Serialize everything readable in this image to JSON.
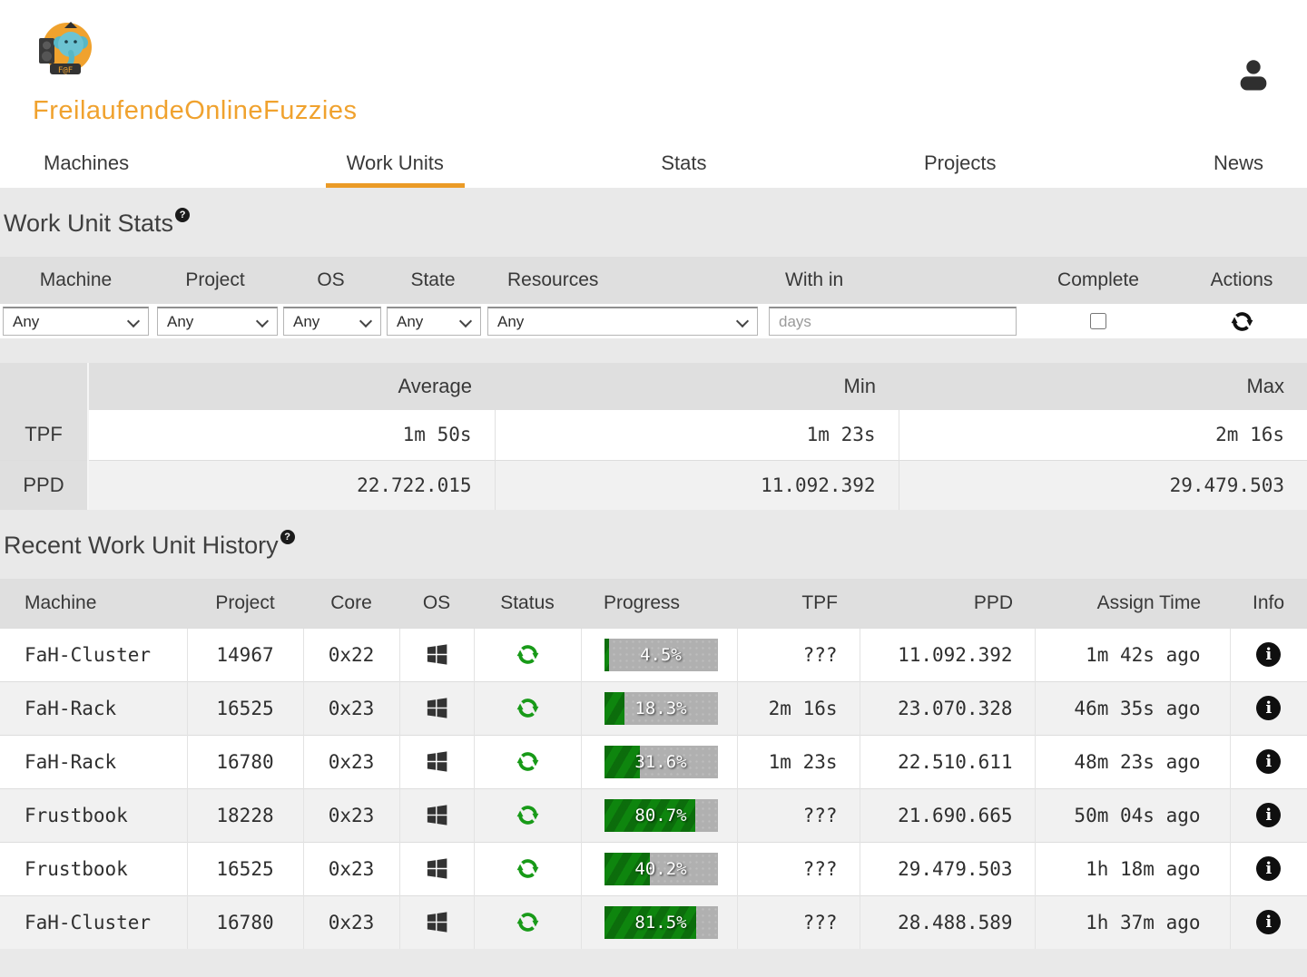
{
  "brand": {
    "title": "FreilaufendeOnlineFuzzies",
    "accent_color": "#f0a22e",
    "logo_icon": "elephant-fof-logo",
    "logo_text": "F@F"
  },
  "nav": {
    "tabs": [
      {
        "label": "Machines",
        "active": false
      },
      {
        "label": "Work Units",
        "active": true
      },
      {
        "label": "Stats",
        "active": false
      },
      {
        "label": "Projects",
        "active": false
      },
      {
        "label": "News",
        "active": false
      }
    ]
  },
  "glyphs": {
    "help": "?",
    "info": "i"
  },
  "colors": {
    "accent": "#f0a22e",
    "tab_underline": "#eb9b27",
    "status_green": "#189a18",
    "progress_green": "#0e850e",
    "progress_track": "#b0b0b0",
    "header_gray": "#dfdfdf",
    "row_alt": "#f1f1f1"
  },
  "wu_stats": {
    "heading": "Work Unit Stats",
    "filters": {
      "headers": {
        "machine": "Machine",
        "project": "Project",
        "os": "OS",
        "state": "State",
        "resources": "Resources",
        "within": "With in",
        "complete": "Complete",
        "actions": "Actions"
      },
      "machine": {
        "value": "Any"
      },
      "project": {
        "value": "Any"
      },
      "os": {
        "value": "Any"
      },
      "state": {
        "value": "Any"
      },
      "resources": {
        "value": "Any"
      },
      "within": {
        "value": "",
        "placeholder": "days"
      },
      "complete": {
        "checked": false
      },
      "actions_icon": "refresh-icon"
    },
    "summary": {
      "headers": {
        "average": "Average",
        "min": "Min",
        "max": "Max"
      },
      "tpf": {
        "label": "TPF",
        "average": "1m 50s",
        "min": "1m 23s",
        "max": "2m 16s"
      },
      "ppd": {
        "label": "PPD",
        "average": "22.722.015",
        "min": "11.092.392",
        "max": "29.479.503"
      }
    }
  },
  "history": {
    "heading": "Recent Work Unit History",
    "headers": {
      "machine": "Machine",
      "project": "Project",
      "core": "Core",
      "os": "OS",
      "status": "Status",
      "progress": "Progress",
      "tpf": "TPF",
      "ppd": "PPD",
      "assign": "Assign Time",
      "info": "Info"
    },
    "rows": [
      {
        "machine": "FaH-Cluster",
        "project": "14967",
        "core": "0x22",
        "os": "windows",
        "status": "running",
        "progress_pct": 4.5,
        "progress_label": "4.5%",
        "tpf": "???",
        "ppd": "11.092.392",
        "assign": "1m 42s ago"
      },
      {
        "machine": "FaH-Rack",
        "project": "16525",
        "core": "0x23",
        "os": "windows",
        "status": "running",
        "progress_pct": 18.3,
        "progress_label": "18.3%",
        "tpf": "2m 16s",
        "ppd": "23.070.328",
        "assign": "46m 35s ago"
      },
      {
        "machine": "FaH-Rack",
        "project": "16780",
        "core": "0x23",
        "os": "windows",
        "status": "running",
        "progress_pct": 31.6,
        "progress_label": "31.6%",
        "tpf": "1m 23s",
        "ppd": "22.510.611",
        "assign": "48m 23s ago"
      },
      {
        "machine": "Frustbook",
        "project": "18228",
        "core": "0x23",
        "os": "windows",
        "status": "running",
        "progress_pct": 80.7,
        "progress_label": "80.7%",
        "tpf": "???",
        "ppd": "21.690.665",
        "assign": "50m 04s ago"
      },
      {
        "machine": "Frustbook",
        "project": "16525",
        "core": "0x23",
        "os": "windows",
        "status": "running",
        "progress_pct": 40.2,
        "progress_label": "40.2%",
        "tpf": "???",
        "ppd": "29.479.503",
        "assign": "1h 18m ago"
      },
      {
        "machine": "FaH-Cluster",
        "project": "16780",
        "core": "0x23",
        "os": "windows",
        "status": "running",
        "progress_pct": 81.5,
        "progress_label": "81.5%",
        "tpf": "???",
        "ppd": "28.488.589",
        "assign": "1h 37m ago"
      }
    ]
  }
}
